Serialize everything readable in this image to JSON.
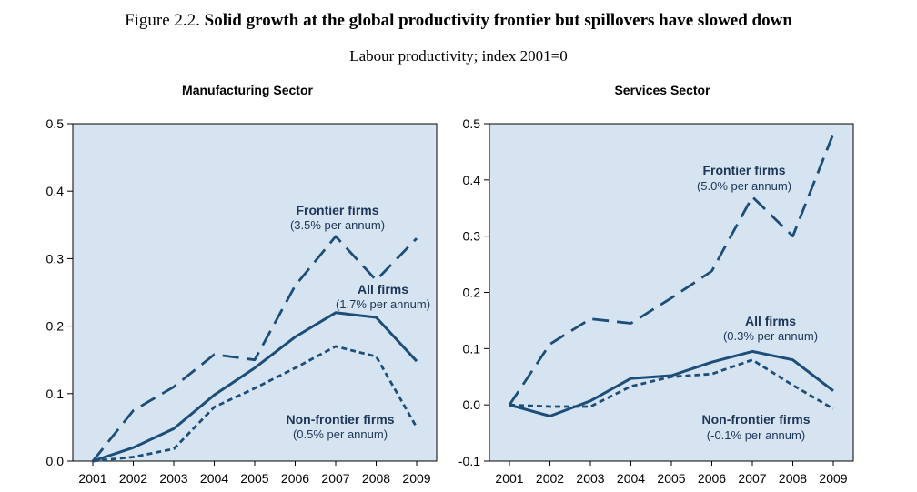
{
  "figure": {
    "number": "Figure 2.2.",
    "title": "Solid growth at the global productivity frontier but spillovers have slowed down",
    "subtitle": "Labour productivity; index 2001=0"
  },
  "colors": {
    "line": "#1d4e79",
    "panel_bg": "#d6e4f2",
    "axis": "#000000"
  },
  "chart_data": [
    {
      "type": "line",
      "title": "Manufacturing Sector",
      "x": [
        "2001",
        "2002",
        "2003",
        "2004",
        "2005",
        "2006",
        "2007",
        "2008",
        "2009"
      ],
      "ylim": [
        0,
        0.5
      ],
      "yticks": [
        "0.0",
        "0.1",
        "0.2",
        "0.3",
        "0.4",
        "0.5"
      ],
      "grid": false,
      "series": [
        {
          "name": "Frontier firms",
          "rate": "(3.5% per annum)",
          "style": "dashed",
          "values": [
            0.0,
            0.075,
            0.11,
            0.158,
            0.15,
            0.26,
            0.333,
            0.268,
            0.33
          ]
        },
        {
          "name": "All firms",
          "rate": "(1.7% per annum)",
          "style": "solid",
          "values": [
            0.0,
            0.02,
            0.048,
            0.098,
            0.138,
            0.184,
            0.22,
            0.213,
            0.148
          ]
        },
        {
          "name": "Non-frontier firms",
          "rate": "(0.5% per annum)",
          "style": "dotted",
          "values": [
            0.0,
            0.006,
            0.018,
            0.08,
            0.108,
            0.138,
            0.17,
            0.155,
            0.05
          ]
        }
      ]
    },
    {
      "type": "line",
      "title": "Services Sector",
      "x": [
        "2001",
        "2002",
        "2003",
        "2004",
        "2005",
        "2006",
        "2007",
        "2008",
        "2009"
      ],
      "ylim": [
        -0.1,
        0.5
      ],
      "yticks": [
        "-0.1",
        "0.0",
        "0.1",
        "0.2",
        "0.3",
        "0.4",
        "0.5"
      ],
      "grid": false,
      "series": [
        {
          "name": "Frontier firms",
          "rate": "(5.0% per annum)",
          "style": "dashed",
          "values": [
            0.0,
            0.108,
            0.153,
            0.145,
            0.19,
            0.238,
            0.37,
            0.3,
            0.482
          ]
        },
        {
          "name": "All firms",
          "rate": "(0.3% per annum)",
          "style": "solid",
          "values": [
            0.0,
            -0.02,
            0.007,
            0.047,
            0.052,
            0.076,
            0.095,
            0.08,
            0.025
          ]
        },
        {
          "name": "Non-frontier firms",
          "rate": "(-0.1% per annum)",
          "style": "dotted",
          "values": [
            0.0,
            -0.003,
            -0.003,
            0.033,
            0.05,
            0.055,
            0.08,
            0.035,
            -0.007
          ]
        }
      ]
    }
  ]
}
